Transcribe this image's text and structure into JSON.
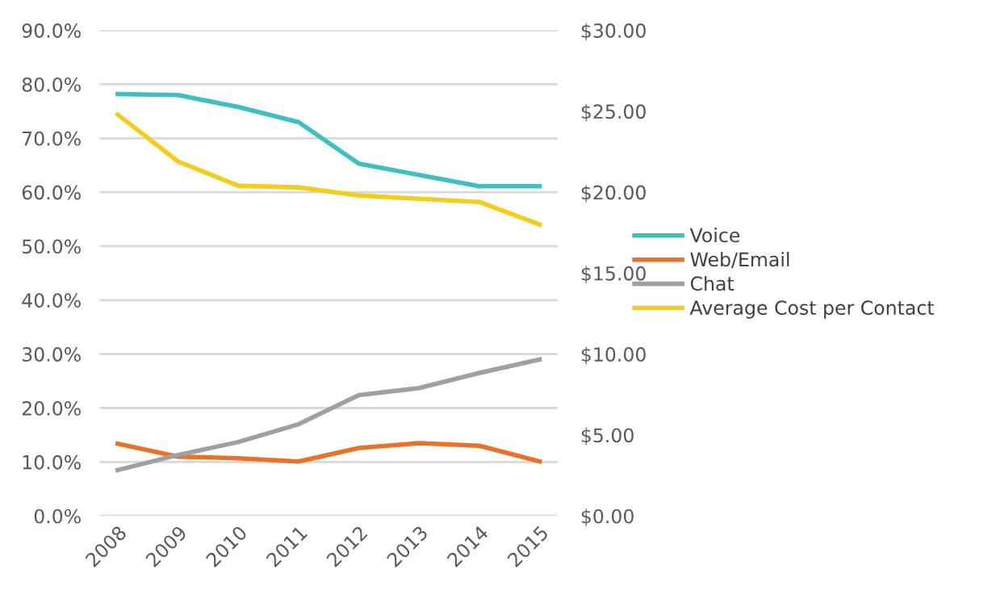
{
  "chart_data": {
    "type": "line",
    "categories": [
      "2008",
      "2009",
      "2010",
      "2011",
      "2012",
      "2013",
      "2014",
      "2015"
    ],
    "series": [
      {
        "name": "Voice",
        "color": "#3fbfbf",
        "values": [
          78.2,
          78.0,
          75.8,
          73.0,
          65.3,
          63.2,
          61.1,
          61.1
        ]
      },
      {
        "name": "Web/Email",
        "color": "#e8722a",
        "values": [
          13.4,
          11.0,
          10.7,
          10.1,
          12.6,
          13.5,
          13.0,
          10.1
        ]
      },
      {
        "name": "Chat",
        "color": "#a0a0a0",
        "values": [
          8.5,
          11.3,
          13.7,
          17.0,
          22.4,
          23.7,
          26.5,
          29.0
        ]
      },
      {
        "name": "Average Cost per Contact",
        "color": "#f2cd1e",
        "axis": "y2",
        "values": [
          24.8,
          21.9,
          20.4,
          20.3,
          19.8,
          19.6,
          19.4,
          18.0
        ]
      }
    ],
    "ylim": [
      0,
      90
    ],
    "yticks": [
      {
        "value": 0,
        "label": "0.0%"
      },
      {
        "value": 10,
        "label": "10.0%"
      },
      {
        "value": 20,
        "label": "20.0%"
      },
      {
        "value": 30,
        "label": "30.0%"
      },
      {
        "value": 40,
        "label": "40.0%"
      },
      {
        "value": 50,
        "label": "50.0%"
      },
      {
        "value": 60,
        "label": "60.0%"
      },
      {
        "value": 70,
        "label": "70.0%"
      },
      {
        "value": 80,
        "label": "80.0%"
      },
      {
        "value": 90,
        "label": "90.0%"
      }
    ],
    "y2lim": [
      0,
      30
    ],
    "y2ticks": [
      {
        "value": 0,
        "label": "$0.00"
      },
      {
        "value": 5,
        "label": "$5.00"
      },
      {
        "value": 10,
        "label": "$10.00"
      },
      {
        "value": 15,
        "label": "$15.00"
      },
      {
        "value": 20,
        "label": "$20.00"
      },
      {
        "value": 25,
        "label": "$25.00"
      },
      {
        "value": 30,
        "label": "$30.00"
      }
    ],
    "grid": "y",
    "legend": "right",
    "marker": "none",
    "line_style": "solid"
  }
}
